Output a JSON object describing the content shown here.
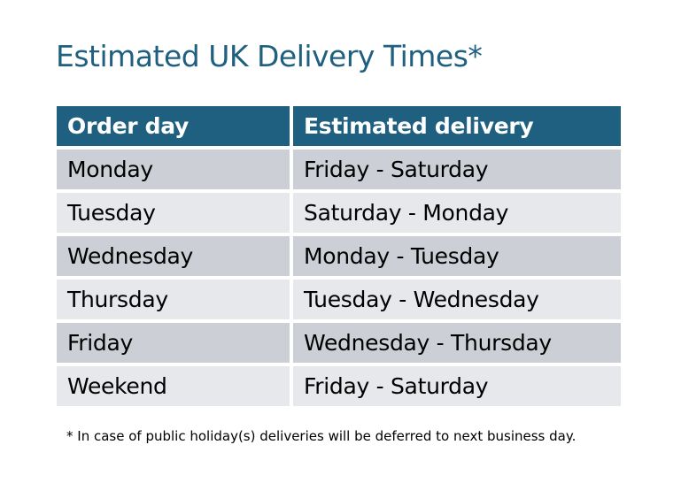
{
  "title": "Estimated UK Delivery Times*",
  "table": {
    "headers": [
      "Order day",
      "Estimated delivery"
    ],
    "rows": [
      [
        "Monday",
        "Friday - Saturday"
      ],
      [
        "Tuesday",
        "Saturday - Monday"
      ],
      [
        "Wednesday",
        "Monday - Tuesday"
      ],
      [
        "Thursday",
        "Tuesday - Wednesday"
      ],
      [
        "Friday",
        "Wednesday - Thursday"
      ],
      [
        "Weekend",
        "Friday - Saturday"
      ]
    ]
  },
  "footnote": "* In case of public holiday(s) deliveries will be deferred to next business day.",
  "colors": {
    "header": "#1f5f80",
    "row_odd": "#ccd0d6",
    "row_even": "#e6e8eb",
    "title": "#1f5f80"
  }
}
